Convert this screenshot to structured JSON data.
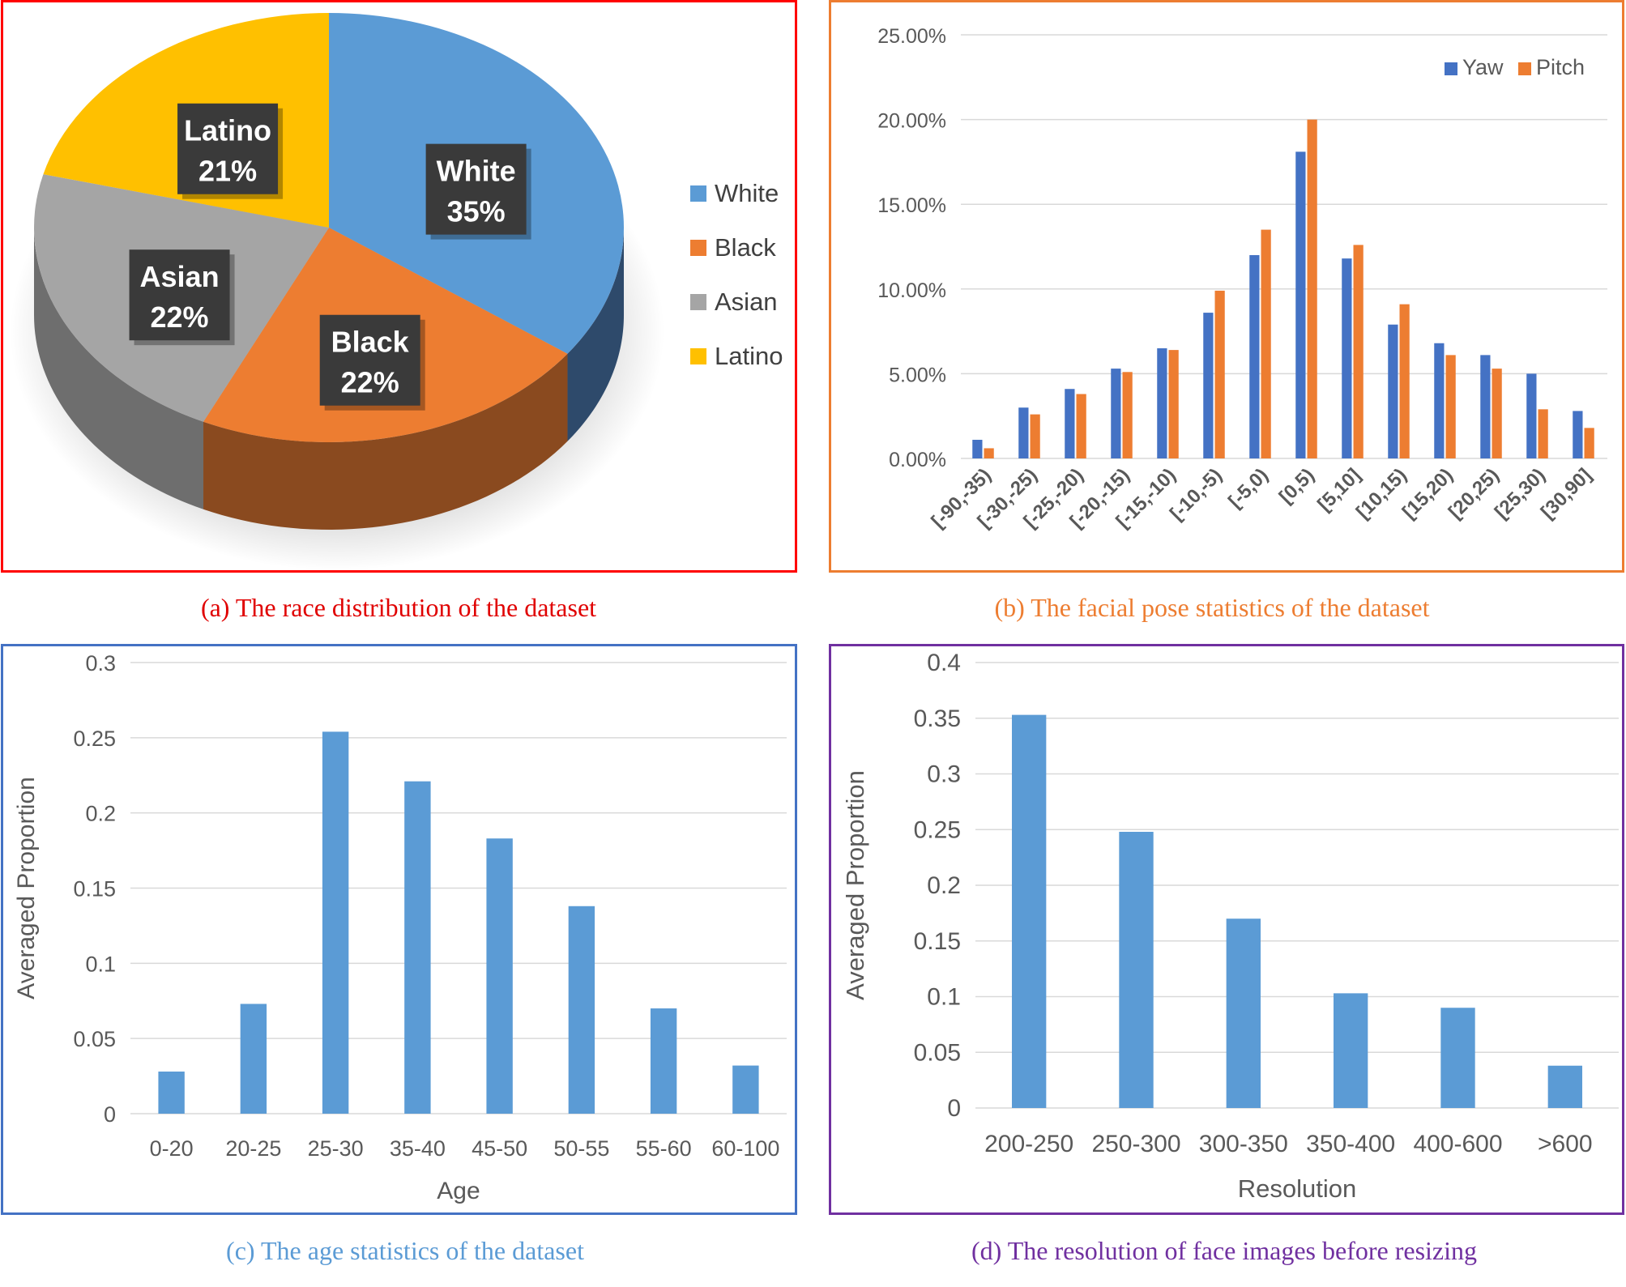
{
  "chart_data": [
    {
      "id": "a",
      "type": "pie",
      "caption": "(a) The race distribution of the dataset",
      "border_color": "#FF0000",
      "caption_color": "#E00000",
      "slices": [
        {
          "name": "White",
          "value": 35,
          "label": "35%",
          "color": "#5B9BD5",
          "side_color": "#2E4A6B"
        },
        {
          "name": "Black",
          "value": 22,
          "label": "22%",
          "color": "#ED7D31",
          "side_color": "#8A4A1F"
        },
        {
          "name": "Asian",
          "value": 22,
          "label": "22%",
          "color": "#A5A5A5",
          "side_color": "#6E6E6E"
        },
        {
          "name": "Latino",
          "value": 21,
          "label": "21%",
          "color": "#FFC000",
          "side_color": "#A67C00"
        }
      ],
      "legend": [
        "White",
        "Black",
        "Asian",
        "Latino"
      ],
      "legend_position": "right"
    },
    {
      "id": "b",
      "type": "bar",
      "caption": "(b) The facial pose statistics of  the dataset",
      "border_color": "#ED7D31",
      "caption_color": "#ED7D31",
      "categories": [
        "[-90,-35)",
        "[-30,-25)",
        "[-25,-20)",
        "[-20,-15)",
        "[-15,-10)",
        "[-10,-5)",
        "[-5,0)",
        "[0,5)",
        "[5,10]",
        "[10,15)",
        "[15,20)",
        "[20,25)",
        "[25,30)",
        "[30,90]"
      ],
      "series": [
        {
          "name": "Yaw",
          "color": "#4472C4",
          "values": [
            1.1,
            3.0,
            4.1,
            5.3,
            6.5,
            8.6,
            12.0,
            18.1,
            11.8,
            7.9,
            6.8,
            6.1,
            5.0,
            2.8
          ]
        },
        {
          "name": "Pitch",
          "color": "#ED7D31",
          "values": [
            0.6,
            2.6,
            3.8,
            5.1,
            6.4,
            9.9,
            13.5,
            20.0,
            12.6,
            9.1,
            6.1,
            5.3,
            2.9,
            1.8
          ]
        }
      ],
      "yticks": [
        "0.00%",
        "5.00%",
        "10.00%",
        "15.00%",
        "20.00%",
        "25.00%"
      ],
      "ylim": [
        0,
        25
      ],
      "legend_position": "top-right"
    },
    {
      "id": "c",
      "type": "bar",
      "caption": "(c) The age statistics of  the dataset",
      "border_color": "#4472C4",
      "caption_color": "#5B9BD5",
      "categories": [
        "0-20",
        "20-25",
        "25-30",
        "35-40",
        "45-50",
        "50-55",
        "55-60",
        "60-100"
      ],
      "values": [
        0.028,
        0.073,
        0.254,
        0.221,
        0.183,
        0.138,
        0.07,
        0.032
      ],
      "color": "#5B9BD5",
      "xlabel": "Age",
      "ylabel": "Averaged Proportion",
      "yticks": [
        "0",
        "0.05",
        "0.1",
        "0.15",
        "0.2",
        "0.25",
        "0.3"
      ],
      "ylim": [
        0,
        0.3
      ]
    },
    {
      "id": "d",
      "type": "bar",
      "caption": "(d) The resolution of face images before resizing",
      "border_color": "#7030A0",
      "caption_color": "#7030A0",
      "categories": [
        "200-250",
        "250-300",
        "300-350",
        "350-400",
        "400-600",
        ">600"
      ],
      "values": [
        0.353,
        0.248,
        0.17,
        0.103,
        0.09,
        0.038
      ],
      "color": "#5B9BD5",
      "xlabel": "Resolution",
      "ylabel": "Averaged Proportion",
      "yticks": [
        "0",
        "0.05",
        "0.1",
        "0.15",
        "0.2",
        "0.25",
        "0.3",
        "0.35",
        "0.4"
      ],
      "ylim": [
        0,
        0.4
      ]
    }
  ]
}
